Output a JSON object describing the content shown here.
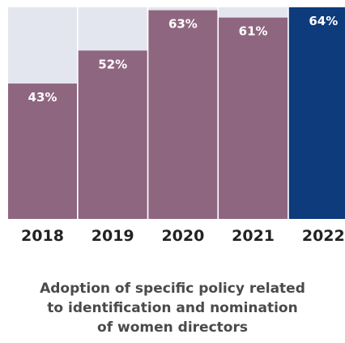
{
  "colors": {
    "background_bar": "#e3e5ef",
    "bar_default": "#8f6680",
    "bar_highlight": "#0d3b7c",
    "label": "#ffffff",
    "tick": "#222222",
    "caption": "#4a4a4a"
  },
  "caption": {
    "lines": [
      "Adoption of specific policy related",
      "to identification and nomination",
      "of women directors"
    ]
  },
  "chart_data": {
    "type": "bar",
    "categories": [
      "2018",
      "2019",
      "2020",
      "2021",
      "2022"
    ],
    "values": [
      43,
      52,
      63,
      61,
      64
    ],
    "labels": [
      "43%",
      "52%",
      "63%",
      "61%",
      "64%"
    ],
    "highlight_category": "2022",
    "unit": "%",
    "ylim": [
      0,
      70
    ],
    "grid": false,
    "legend": "none",
    "title": "",
    "xlabel": "",
    "ylabel": ""
  }
}
